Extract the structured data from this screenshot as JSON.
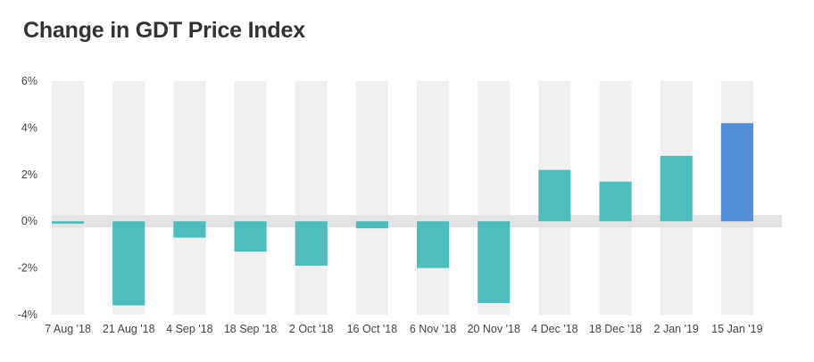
{
  "chart_data": {
    "type": "bar",
    "title": "Change in GDT Price Index",
    "xlabel": "",
    "ylabel": "",
    "categories": [
      "7 Aug '18",
      "21 Aug '18",
      "4 Sep '18",
      "18 Sep '18",
      "2 Oct '18",
      "16 Oct '18",
      "6 Nov '18",
      "20 Nov '18",
      "4 Dec '18",
      "18 Dec '18",
      "2 Jan '19",
      "15 Jan '19"
    ],
    "values": [
      -0.1,
      -3.6,
      -0.7,
      -1.3,
      -1.9,
      -0.3,
      -2.0,
      -3.5,
      2.2,
      1.7,
      2.8,
      4.2
    ],
    "ylim": [
      -4,
      6
    ],
    "yticks": [
      6,
      4,
      2,
      0,
      -2,
      -4
    ],
    "ytick_labels": [
      "6%",
      "4%",
      "2%",
      "0%",
      "-2%",
      "-4%"
    ],
    "colors": {
      "bar": "#4dbdbd",
      "highlight": "#528fd6",
      "band": "#f0f0f0",
      "zero_band": "#e3e3e3",
      "text": "#444444"
    },
    "highlight_index": 11,
    "grid": false,
    "legend": "none"
  }
}
